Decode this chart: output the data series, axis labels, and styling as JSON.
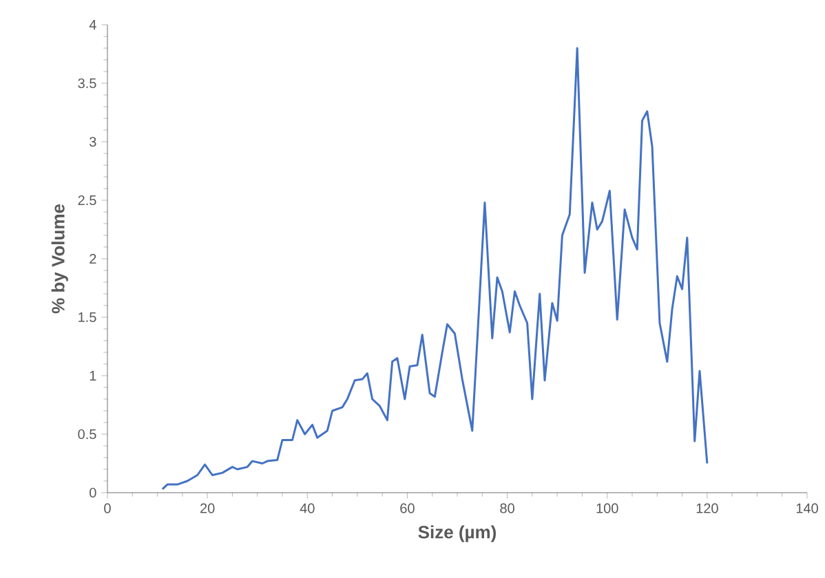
{
  "chart_data": {
    "type": "line",
    "xlabel": "Size (µm)",
    "ylabel": "% by Volume",
    "xlim": [
      0,
      140
    ],
    "ylim": [
      0,
      4
    ],
    "xticks": [
      0,
      20,
      40,
      60,
      80,
      100,
      120,
      140
    ],
    "yticks": [
      0,
      0.5,
      1,
      1.5,
      2,
      2.5,
      3,
      3.5,
      4
    ],
    "marker": "none",
    "line_style": "solid",
    "series": [
      {
        "color": "#4472c4",
        "x": [
          11,
          12,
          14,
          16,
          18,
          19.5,
          21,
          23,
          25,
          26,
          28,
          29,
          31,
          32,
          34,
          35,
          37,
          38,
          39.5,
          41,
          42,
          44,
          45,
          47,
          48,
          49.5,
          51,
          52,
          53,
          54.5,
          56,
          57,
          58,
          59.5,
          60.5,
          62,
          63,
          64.5,
          65.5,
          67,
          68,
          69.5,
          71,
          73,
          74,
          75.5,
          77,
          78,
          79,
          80.5,
          81.5,
          82.5,
          84,
          85,
          86.5,
          87.5,
          89,
          90,
          91,
          92.5,
          94,
          95.5,
          97,
          98,
          99,
          100.5,
          102,
          103.5,
          105,
          106,
          107,
          108,
          109,
          110.5,
          112,
          113,
          114,
          115,
          116,
          117.5,
          118.5,
          120
        ],
        "values": [
          0.03,
          0.07,
          0.07,
          0.1,
          0.15,
          0.24,
          0.15,
          0.17,
          0.22,
          0.2,
          0.22,
          0.27,
          0.25,
          0.27,
          0.28,
          0.45,
          0.45,
          0.62,
          0.5,
          0.58,
          0.47,
          0.53,
          0.7,
          0.73,
          0.8,
          0.96,
          0.97,
          1.02,
          0.8,
          0.74,
          0.62,
          1.12,
          1.15,
          0.8,
          1.08,
          1.09,
          1.35,
          0.85,
          0.82,
          1.2,
          1.44,
          1.36,
          0.97,
          0.53,
          1.3,
          2.48,
          1.32,
          1.84,
          1.72,
          1.37,
          1.72,
          1.6,
          1.45,
          0.8,
          1.7,
          0.96,
          1.62,
          1.47,
          2.2,
          2.38,
          3.8,
          1.88,
          2.48,
          2.25,
          2.32,
          2.58,
          1.48,
          2.42,
          2.18,
          2.08,
          3.18,
          3.26,
          2.96,
          1.45,
          1.12,
          1.57,
          1.85,
          1.74,
          2.18,
          0.44,
          1.04,
          0.25
        ]
      }
    ]
  }
}
